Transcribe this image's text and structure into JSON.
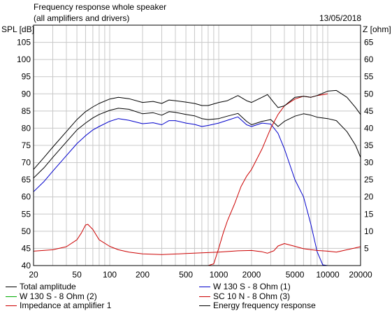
{
  "header": {
    "title": "Frequency response whole speaker",
    "subtitle": "(all amplifiers and drivers)",
    "date": "13/05/2018"
  },
  "chart_data": {
    "type": "line",
    "title": "Frequency response whole speaker",
    "subtitle": "(all amplifiers and drivers)",
    "ylabel_left": "SPL [dB]",
    "ylabel_right": "Z [ohm]",
    "xscale": "log",
    "xlim": [
      20,
      20000
    ],
    "ylim_left": [
      40,
      110
    ],
    "ylim_right": [
      0,
      70
    ],
    "grid": true,
    "x_tick_labels": [
      "20",
      "50",
      "100",
      "200",
      "500",
      "1000",
      "2000",
      "5000",
      "10000",
      "20000"
    ],
    "y_left_tick_labels": [
      "40",
      "45",
      "50",
      "55",
      "60",
      "65",
      "70",
      "75",
      "80",
      "85",
      "90",
      "95",
      "100",
      "105"
    ],
    "y_right_tick_labels": [
      "5",
      "10",
      "15",
      "20",
      "25",
      "30",
      "35",
      "40",
      "45",
      "50",
      "55",
      "60",
      "65"
    ],
    "legend_placement": "bottom",
    "series": [
      {
        "name": "Total amplitude",
        "color": "#000000",
        "axis": "left",
        "points": [
          [
            20,
            65.5
          ],
          [
            25,
            68.5
          ],
          [
            30,
            71.5
          ],
          [
            40,
            76
          ],
          [
            50,
            79.5
          ],
          [
            60,
            81.5
          ],
          [
            70,
            83
          ],
          [
            80,
            84
          ],
          [
            100,
            85.2
          ],
          [
            120,
            85.8
          ],
          [
            150,
            85.5
          ],
          [
            200,
            84.2
          ],
          [
            250,
            84.5
          ],
          [
            300,
            83.8
          ],
          [
            350,
            84.8
          ],
          [
            400,
            84.6
          ],
          [
            500,
            84
          ],
          [
            600,
            83.6
          ],
          [
            700,
            82.8
          ],
          [
            800,
            82.5
          ],
          [
            1000,
            82.8
          ],
          [
            1200,
            83.5
          ],
          [
            1500,
            84.3
          ],
          [
            1800,
            82
          ],
          [
            2000,
            81
          ],
          [
            2500,
            82
          ],
          [
            3000,
            82.5
          ],
          [
            3500,
            80.5
          ],
          [
            4000,
            82
          ],
          [
            5000,
            83.5
          ],
          [
            6000,
            84.2
          ],
          [
            7000,
            83.8
          ],
          [
            8000,
            83.2
          ],
          [
            10000,
            82.8
          ],
          [
            12000,
            82.2
          ],
          [
            15000,
            79
          ],
          [
            18000,
            75
          ],
          [
            20000,
            71.5
          ]
        ]
      },
      {
        "name": "W 130 S - 8 Ohm (1)",
        "color": "#0000cc",
        "axis": "left",
        "points": [
          [
            20,
            61.5
          ],
          [
            25,
            64.5
          ],
          [
            30,
            67.5
          ],
          [
            40,
            72
          ],
          [
            50,
            75.5
          ],
          [
            60,
            77.8
          ],
          [
            70,
            79.5
          ],
          [
            80,
            80.5
          ],
          [
            100,
            82
          ],
          [
            120,
            82.8
          ],
          [
            150,
            82.3
          ],
          [
            200,
            81.3
          ],
          [
            250,
            81.6
          ],
          [
            300,
            81
          ],
          [
            350,
            82.2
          ],
          [
            400,
            82.2
          ],
          [
            500,
            81.5
          ],
          [
            600,
            81.1
          ],
          [
            700,
            80.5
          ],
          [
            800,
            80.8
          ],
          [
            1000,
            81.5
          ],
          [
            1200,
            82.3
          ],
          [
            1500,
            83.3
          ],
          [
            1800,
            81
          ],
          [
            2000,
            80.5
          ],
          [
            2500,
            81.5
          ],
          [
            3000,
            81.2
          ],
          [
            3500,
            78.5
          ],
          [
            4000,
            74
          ],
          [
            5000,
            65
          ],
          [
            6000,
            60
          ],
          [
            7000,
            52
          ],
          [
            8000,
            44
          ],
          [
            9000,
            40.2
          ],
          [
            10000,
            40
          ]
        ]
      },
      {
        "name": "W 130 S - 8 Ohm (2)",
        "color": "#00aa00",
        "axis": "left",
        "points": []
      },
      {
        "name": "SC 10 N - 8 Ohm (3)",
        "color": "#cc0000",
        "axis": "left",
        "points": [
          [
            800,
            40
          ],
          [
            900,
            40.5
          ],
          [
            1000,
            45
          ],
          [
            1100,
            49.5
          ],
          [
            1200,
            53
          ],
          [
            1400,
            58
          ],
          [
            1600,
            63
          ],
          [
            1800,
            66
          ],
          [
            2000,
            68
          ],
          [
            2500,
            74
          ],
          [
            3000,
            80
          ],
          [
            3500,
            84
          ],
          [
            4000,
            86.5
          ],
          [
            5000,
            88.5
          ],
          [
            6000,
            89.3
          ],
          [
            7000,
            89
          ],
          [
            8000,
            89.5
          ],
          [
            10000,
            90
          ]
        ]
      },
      {
        "name": "Impedance at amplifier 1",
        "color": "#cc0000",
        "axis": "right",
        "points": [
          [
            20,
            4.2
          ],
          [
            30,
            4.6
          ],
          [
            40,
            5.5
          ],
          [
            50,
            7.5
          ],
          [
            55,
            9.5
          ],
          [
            60,
            11.8
          ],
          [
            63,
            12
          ],
          [
            70,
            10.5
          ],
          [
            80,
            7.5
          ],
          [
            100,
            5.6
          ],
          [
            120,
            4.6
          ],
          [
            150,
            3.9
          ],
          [
            200,
            3.4
          ],
          [
            300,
            3.2
          ],
          [
            500,
            3.5
          ],
          [
            700,
            3.7
          ],
          [
            1000,
            3.9
          ],
          [
            1500,
            4.3
          ],
          [
            2000,
            4.4
          ],
          [
            2500,
            4
          ],
          [
            2800,
            3.6
          ],
          [
            3200,
            4.3
          ],
          [
            3500,
            5.7
          ],
          [
            4000,
            6.4
          ],
          [
            5000,
            5.6
          ],
          [
            6000,
            4.9
          ],
          [
            8000,
            4.4
          ],
          [
            10000,
            4.2
          ],
          [
            12000,
            3.9
          ],
          [
            15000,
            4.6
          ],
          [
            20000,
            5.5
          ]
        ]
      },
      {
        "name": "Energy frequency response",
        "color": "#000000",
        "axis": "left",
        "points": [
          [
            20,
            68
          ],
          [
            25,
            71.5
          ],
          [
            30,
            74.5
          ],
          [
            40,
            79
          ],
          [
            50,
            82.5
          ],
          [
            60,
            84.8
          ],
          [
            70,
            86.2
          ],
          [
            80,
            87.2
          ],
          [
            100,
            88.5
          ],
          [
            120,
            89
          ],
          [
            150,
            88.6
          ],
          [
            200,
            87.5
          ],
          [
            250,
            87.8
          ],
          [
            300,
            87.2
          ],
          [
            350,
            88.2
          ],
          [
            400,
            88
          ],
          [
            500,
            87.6
          ],
          [
            600,
            87.2
          ],
          [
            700,
            86.6
          ],
          [
            800,
            86.6
          ],
          [
            1000,
            87.5
          ],
          [
            1200,
            88
          ],
          [
            1500,
            89.5
          ],
          [
            1800,
            88
          ],
          [
            2000,
            87.5
          ],
          [
            2500,
            89
          ],
          [
            2800,
            89.8
          ],
          [
            3200,
            87.5
          ],
          [
            3500,
            86
          ],
          [
            4000,
            86.5
          ],
          [
            5000,
            89
          ],
          [
            6000,
            89.3
          ],
          [
            7000,
            89
          ],
          [
            8000,
            89.5
          ],
          [
            10000,
            90.8
          ],
          [
            12000,
            91
          ],
          [
            15000,
            89
          ],
          [
            18000,
            86
          ],
          [
            20000,
            84
          ]
        ]
      }
    ]
  },
  "legend": {
    "items": [
      {
        "label": "Total amplitude",
        "color": "#000000"
      },
      {
        "label": "W 130 S - 8 Ohm (1)",
        "color": "#0000cc"
      },
      {
        "label": "W 130 S - 8 Ohm (2)",
        "color": "#00aa00"
      },
      {
        "label": "SC 10 N - 8 Ohm (3)",
        "color": "#cc0000"
      },
      {
        "label": "Impedance at amplifier 1",
        "color": "#cc0000"
      },
      {
        "label": "Energy frequency response",
        "color": "#000000"
      }
    ]
  }
}
